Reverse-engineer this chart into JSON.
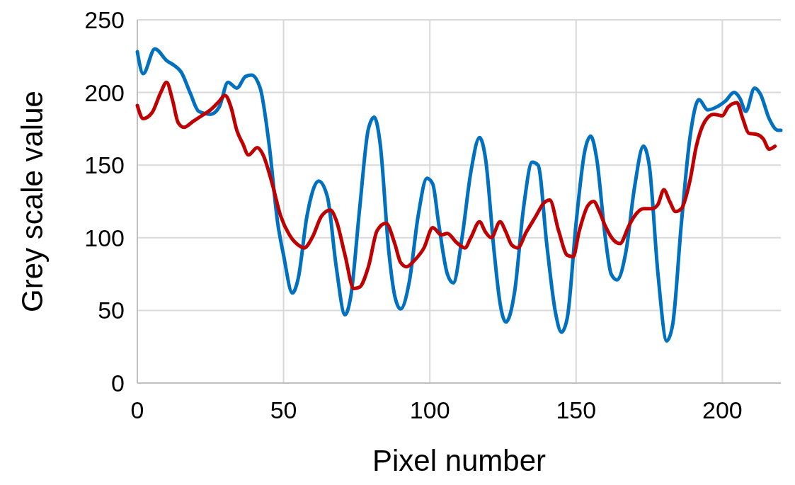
{
  "chart_data": {
    "type": "line",
    "xlabel": "Pixel number",
    "ylabel": "Grey scale value",
    "xlim": [
      0,
      220
    ],
    "xticks": [
      0,
      50,
      100,
      150,
      200
    ],
    "ylim": [
      0,
      250
    ],
    "yticks": [
      0,
      50,
      100,
      150,
      200,
      250
    ],
    "grid": true,
    "marker": "none",
    "line_style": "solid",
    "series": [
      {
        "color": "#0070c0",
        "x": [
          0,
          2,
          6,
          10,
          13,
          15,
          18,
          21,
          25,
          28,
          31,
          34,
          37,
          39,
          42,
          45,
          48,
          50,
          53,
          55,
          58,
          62,
          65,
          68,
          71,
          73,
          76,
          79,
          81,
          83,
          86,
          88,
          90,
          93,
          96,
          99,
          101,
          103,
          106,
          108,
          111,
          114,
          117,
          119,
          122,
          124,
          126,
          129,
          132,
          135,
          137,
          140,
          143,
          145,
          147,
          150,
          153,
          155,
          157,
          160,
          162,
          164,
          167,
          170,
          173,
          175,
          178,
          181,
          183,
          186,
          189,
          192,
          195,
          198,
          201,
          204,
          206,
          208,
          211,
          213,
          216,
          219,
          220
        ],
        "values": [
          228,
          213,
          230,
          222,
          218,
          214,
          200,
          187,
          185,
          190,
          207,
          203,
          211,
          212,
          203,
          165,
          110,
          88,
          62,
          72,
          115,
          139,
          128,
          80,
          47,
          60,
          120,
          175,
          183,
          165,
          90,
          60,
          51,
          70,
          115,
          141,
          137,
          110,
          75,
          69,
          100,
          145,
          169,
          155,
          90,
          55,
          42,
          63,
          120,
          152,
          150,
          95,
          48,
          35,
          45,
          110,
          160,
          170,
          155,
          100,
          75,
          71,
          90,
          135,
          163,
          150,
          75,
          29,
          40,
          110,
          170,
          195,
          188,
          190,
          194,
          200,
          196,
          187,
          203,
          199,
          182,
          174,
          174
        ]
      },
      {
        "color": "#c00000",
        "x": [
          0,
          2,
          5,
          8,
          10,
          12,
          14,
          16,
          19,
          22,
          25,
          28,
          30,
          32,
          34,
          36,
          38,
          41,
          43,
          46,
          49,
          52,
          55,
          57,
          60,
          63,
          66,
          68,
          71,
          74,
          76,
          79,
          82,
          85,
          88,
          90,
          92,
          95,
          98,
          101,
          104,
          106,
          109,
          112,
          114,
          117,
          119,
          121,
          124,
          126,
          128,
          130,
          133,
          136,
          139,
          141,
          144,
          147,
          149,
          151,
          154,
          156,
          158,
          160,
          163,
          165,
          168,
          170,
          173,
          176,
          178,
          180,
          182,
          184,
          186,
          189,
          191,
          194,
          197,
          200,
          202,
          205,
          207,
          209,
          212,
          214,
          216,
          218
        ],
        "values": [
          191,
          182,
          186,
          200,
          207,
          195,
          179,
          176,
          180,
          184,
          188,
          194,
          198,
          190,
          174,
          165,
          157,
          162,
          157,
          138,
          115,
          102,
          95,
          93,
          101,
          115,
          119,
          112,
          88,
          65,
          66,
          80,
          105,
          110,
          96,
          83,
          80,
          85,
          93,
          107,
          102,
          103,
          97,
          93,
          100,
          111,
          104,
          100,
          111,
          104,
          95,
          93,
          104,
          114,
          124,
          126,
          105,
          88,
          87,
          104,
          122,
          125,
          118,
          108,
          98,
          96,
          108,
          115,
          120,
          120,
          123,
          133,
          125,
          118,
          120,
          140,
          162,
          180,
          185,
          184,
          190,
          193,
          182,
          172,
          171,
          168,
          161,
          163
        ]
      }
    ]
  }
}
